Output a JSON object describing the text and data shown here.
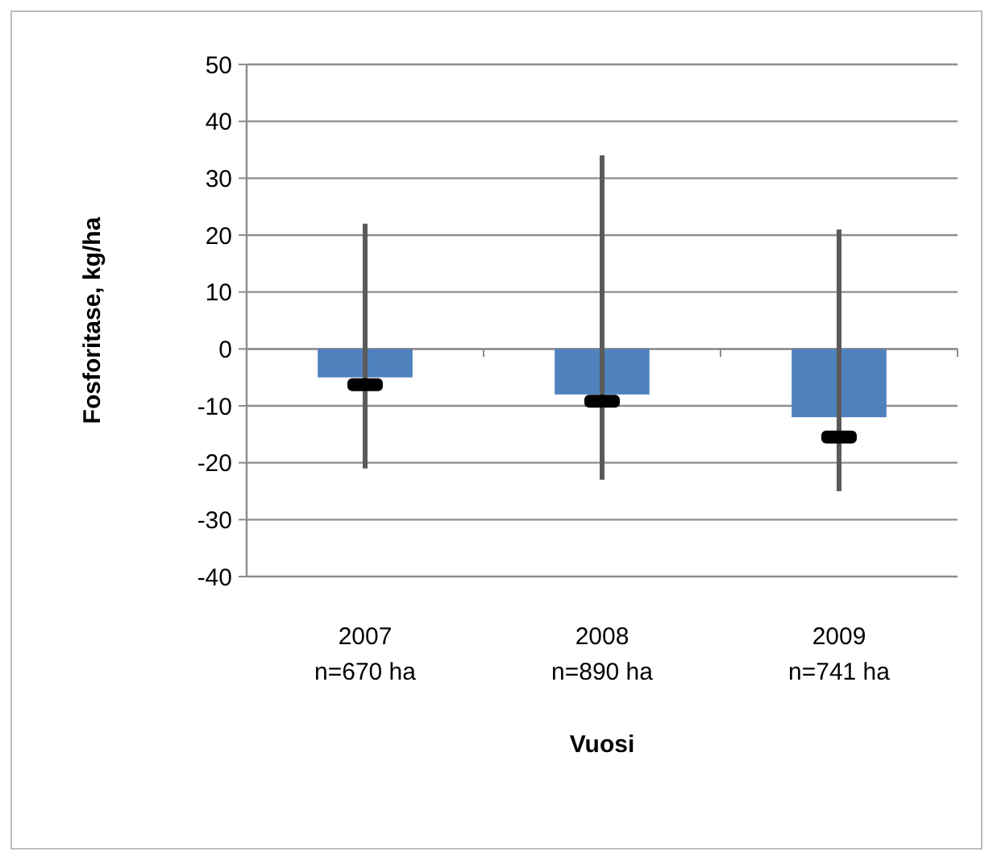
{
  "chart_data": {
    "type": "bar",
    "xlabel": "Vuosi",
    "ylabel": "Fosforitase, kg/ha",
    "categories": [
      "2007\nn=670 ha",
      "2008\nn=890 ha",
      "2009\nn=741 ha"
    ],
    "series": [
      {
        "color": "#4f81bd",
        "values": [
          -5,
          -8,
          -12
        ],
        "errors": [
          [
            -21,
            22
          ],
          [
            -23,
            34
          ],
          [
            -25,
            21
          ]
        ]
      },
      {
        "type": "scatter",
        "color": "#000000",
        "marker": "square",
        "x": [
          "2007\nn=670 ha",
          "2008\nn=890 ha",
          "2009\nn=741 ha"
        ],
        "values": [
          -6.3,
          -9.2,
          -15.5
        ]
      }
    ],
    "ylim": [
      -40,
      50
    ],
    "yticks": [
      -40,
      -30,
      -20,
      -10,
      0,
      10,
      20,
      30,
      40,
      50
    ],
    "grid": "y"
  }
}
